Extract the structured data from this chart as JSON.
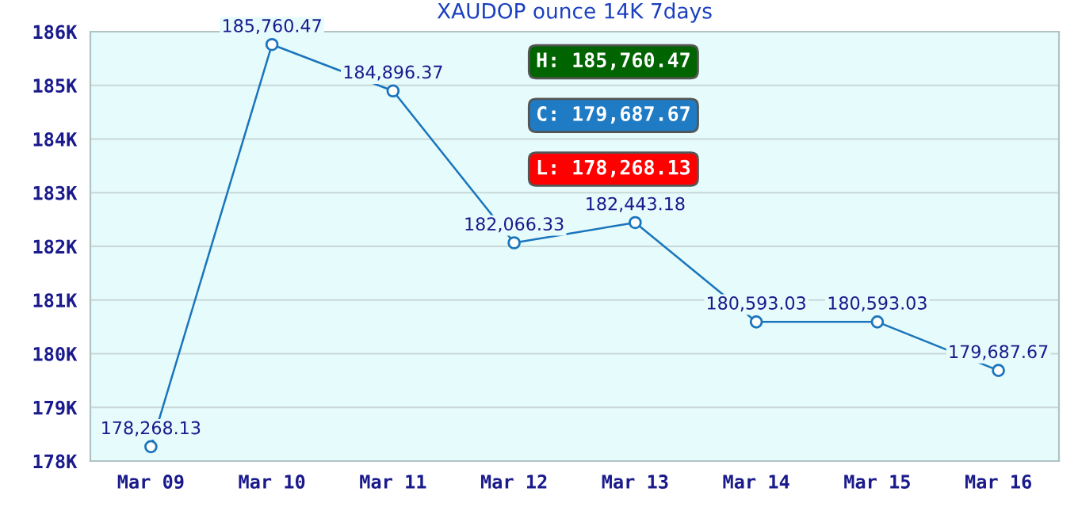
{
  "chart_data": {
    "type": "line",
    "title": "XAUDOP ounce 14K 7days",
    "categories": [
      "Mar 09",
      "Mar 10",
      "Mar 11",
      "Mar 12",
      "Mar 13",
      "Mar 14",
      "Mar 15",
      "Mar 16"
    ],
    "series": [
      {
        "color": "#1a75bc",
        "values": [
          178268.13,
          185760.47,
          184896.37,
          182066.33,
          182443.18,
          180593.03,
          180593.03,
          179687.67
        ],
        "value_labels": [
          "178,268.13",
          "185,760.47",
          "184,896.37",
          "182,066.33",
          "182,443.18",
          "180,593.03",
          "180,593.03",
          "179,687.67"
        ]
      }
    ],
    "ylim": [
      178000,
      186000
    ],
    "yticks": [
      {
        "value": 178000,
        "label": "178K"
      },
      {
        "value": 179000,
        "label": "179K"
      },
      {
        "value": 180000,
        "label": "180K"
      },
      {
        "value": 181000,
        "label": "181K"
      },
      {
        "value": 182000,
        "label": "182K"
      },
      {
        "value": 183000,
        "label": "183K"
      },
      {
        "value": 184000,
        "label": "184K"
      },
      {
        "value": 185000,
        "label": "185K"
      },
      {
        "value": 186000,
        "label": "186K"
      }
    ],
    "grid": "y",
    "marker": "circle",
    "line_style": "solid",
    "annotations": [
      "H: 185,760.47",
      "C: 179,687.67",
      "L: 178,268.13"
    ]
  }
}
